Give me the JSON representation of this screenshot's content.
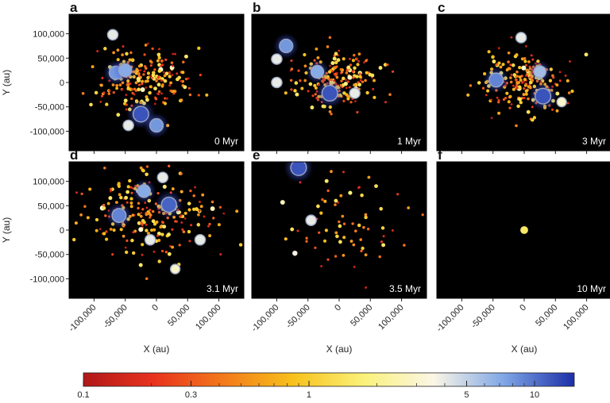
{
  "chart_data": {
    "type": "scatter",
    "x_label": "X (au)",
    "y_label": "Y (au)",
    "xlim": [
      -140000,
      140000
    ],
    "ylim": [
      -140000,
      140000
    ],
    "x_ticks": [
      -100000,
      -50000,
      0,
      50000,
      100000
    ],
    "x_tick_labels": [
      "-100,000",
      "-50,000",
      "0",
      "50,000",
      "100,000"
    ],
    "y_ticks": [
      100000,
      50000,
      0,
      -50000,
      -100000
    ],
    "y_tick_labels": [
      "100,000",
      "50,000",
      "0",
      "-50,000",
      "-100,000"
    ],
    "colorbar": {
      "scale": "log",
      "range": [
        0.1,
        15
      ],
      "ticks": [
        0.1,
        0.3,
        1,
        5,
        10
      ],
      "tick_labels": [
        "0.1",
        "0.3",
        "1",
        "5",
        "10"
      ],
      "colors": [
        "#b01818",
        "#e8321e",
        "#f37a1a",
        "#f8c21c",
        "#faf17a",
        "#fbf6e6",
        "#7fa6e6",
        "#1c2fa8"
      ]
    },
    "panels": [
      {
        "label": "a",
        "time": "0 Myr",
        "big_stars": [
          {
            "x": -65000,
            "y": 20000,
            "m": 8
          },
          {
            "x": -50000,
            "y": 25000,
            "m": 7
          },
          {
            "x": -25000,
            "y": -65000,
            "m": 12
          },
          {
            "x": 0,
            "y": -88000,
            "m": 8
          },
          {
            "x": -70000,
            "y": 98000,
            "m": 4
          },
          {
            "x": -45000,
            "y": -88000,
            "m": 4
          }
        ],
        "cluster": {
          "cx": -25000,
          "cy": 5000,
          "sx": 38000,
          "sy": 33000,
          "n": 230
        }
      },
      {
        "label": "b",
        "time": "1 Myr",
        "big_stars": [
          {
            "x": -85000,
            "y": 75000,
            "m": 8
          },
          {
            "x": -100000,
            "y": 48000,
            "m": 4
          },
          {
            "x": -35000,
            "y": 22000,
            "m": 7
          },
          {
            "x": -15000,
            "y": -22000,
            "m": 12
          },
          {
            "x": 25000,
            "y": -22000,
            "m": 4
          },
          {
            "x": -100000,
            "y": 0,
            "m": 4
          }
        ],
        "cluster": {
          "cx": -5000,
          "cy": 5000,
          "sx": 32000,
          "sy": 28000,
          "n": 210
        }
      },
      {
        "label": "c",
        "time": "3 Myr",
        "big_stars": [
          {
            "x": -5000,
            "y": 92000,
            "m": 4
          },
          {
            "x": 25000,
            "y": 22000,
            "m": 6
          },
          {
            "x": -45000,
            "y": 5000,
            "m": 9
          },
          {
            "x": 30000,
            "y": -28000,
            "m": 12
          },
          {
            "x": 60000,
            "y": -40000,
            "m": 3
          }
        ],
        "cluster": {
          "cx": 0,
          "cy": 0,
          "sx": 34000,
          "sy": 30000,
          "n": 220
        }
      },
      {
        "label": "d",
        "time": "3.1 Myr",
        "big_stars": [
          {
            "x": -20000,
            "y": 80000,
            "m": 7
          },
          {
            "x": 20000,
            "y": 52000,
            "m": 11
          },
          {
            "x": 10000,
            "y": 108000,
            "m": 4
          },
          {
            "x": -60000,
            "y": 30000,
            "m": 9
          },
          {
            "x": -10000,
            "y": -20000,
            "m": 4
          },
          {
            "x": 70000,
            "y": -20000,
            "m": 4
          },
          {
            "x": 30000,
            "y": -80000,
            "m": 3
          }
        ],
        "cluster": {
          "cx": -10000,
          "cy": 30000,
          "sx": 50000,
          "sy": 42000,
          "n": 220
        }
      },
      {
        "label": "e",
        "time": "3.5 Myr",
        "big_stars": [
          {
            "x": -65000,
            "y": 128000,
            "m": 12
          },
          {
            "x": -45000,
            "y": 20000,
            "m": 4
          }
        ],
        "cluster": {
          "cx": 10000,
          "cy": 30000,
          "sx": 60000,
          "sy": 60000,
          "n": 75
        }
      },
      {
        "label": "f",
        "time": "10 Myr",
        "big_stars": [
          {
            "x": 0,
            "y": 0,
            "m": 1.5
          }
        ],
        "cluster": {
          "cx": 0,
          "cy": 0,
          "sx": 0,
          "sy": 0,
          "n": 0
        }
      }
    ]
  }
}
